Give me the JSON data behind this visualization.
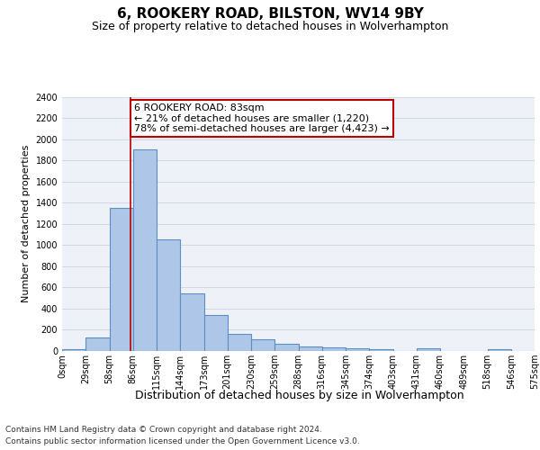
{
  "title1": "6, ROOKERY ROAD, BILSTON, WV14 9BY",
  "title2": "Size of property relative to detached houses in Wolverhampton",
  "xlabel": "Distribution of detached houses by size in Wolverhampton",
  "ylabel": "Number of detached properties",
  "bin_labels": [
    "0sqm",
    "29sqm",
    "58sqm",
    "86sqm",
    "115sqm",
    "144sqm",
    "173sqm",
    "201sqm",
    "230sqm",
    "259sqm",
    "288sqm",
    "316sqm",
    "345sqm",
    "374sqm",
    "403sqm",
    "431sqm",
    "460sqm",
    "489sqm",
    "518sqm",
    "546sqm",
    "575sqm"
  ],
  "bar_heights": [
    15,
    125,
    1350,
    1900,
    1050,
    545,
    340,
    165,
    110,
    65,
    40,
    30,
    25,
    20,
    0,
    25,
    0,
    0,
    15,
    0
  ],
  "bar_color": "#aec6e8",
  "bar_edge_color": "#5a8fc0",
  "bar_edge_width": 0.8,
  "grid_color": "#d0d8e8",
  "background_color": "#eef2f8",
  "ylim": [
    0,
    2400
  ],
  "yticks": [
    0,
    200,
    400,
    600,
    800,
    1000,
    1200,
    1400,
    1600,
    1800,
    2000,
    2200,
    2400
  ],
  "property_sqm": 83,
  "red_line_color": "#bb0000",
  "annotation_text": "6 ROOKERY ROAD: 83sqm\n← 21% of detached houses are smaller (1,220)\n78% of semi-detached houses are larger (4,423) →",
  "annotation_box_color": "white",
  "annotation_box_edge_color": "#bb0000",
  "footer_line1": "Contains HM Land Registry data © Crown copyright and database right 2024.",
  "footer_line2": "Contains public sector information licensed under the Open Government Licence v3.0.",
  "title1_fontsize": 11,
  "title2_fontsize": 9,
  "xlabel_fontsize": 9,
  "ylabel_fontsize": 8,
  "tick_fontsize": 7,
  "annotation_fontsize": 8,
  "footer_fontsize": 6.5
}
